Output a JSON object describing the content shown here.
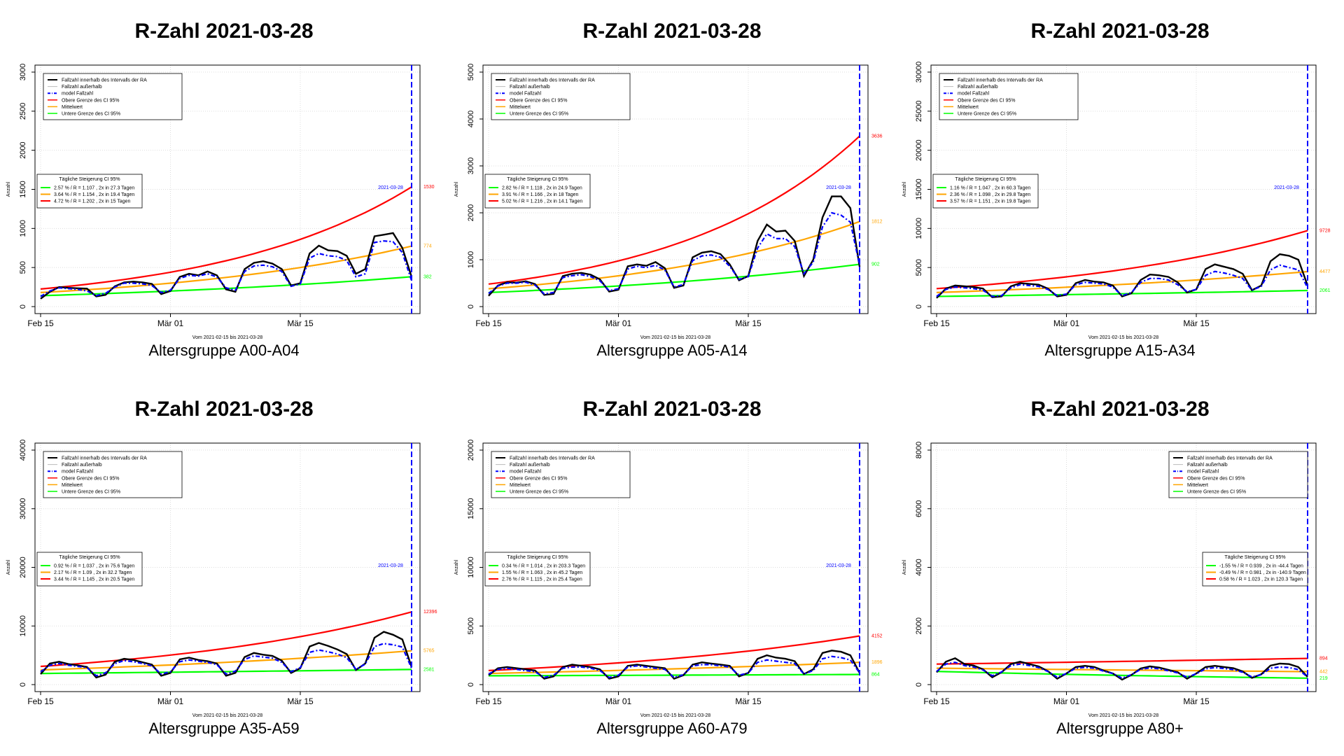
{
  "chart_data": [
    {
      "type": "line",
      "title": "R-Zahl 2021-03-28",
      "subtitle": "Altersgruppe A00-A04",
      "ylabel": "Anzahl",
      "xlabel_note": "Vom 2021-02-15 bis 2021-03-28",
      "x_ticks": [
        "Feb 15",
        "Mär 01",
        "Mär 15"
      ],
      "ylim": [
        0,
        3000
      ],
      "y_ticks": [
        0,
        500,
        1000,
        1500,
        2000,
        2500,
        3000
      ],
      "vline_label": "2021-03-28",
      "legend_position": "top-left",
      "legend": [
        "Fallzahl innerhalb des Intervalls der RA",
        "Fallzahl außerhalb",
        "model Fallzahl",
        "Obere Grenze des CI 95%",
        "Mittelwert",
        "Untere Grenze des CI 95%"
      ],
      "growth_box_position": "left",
      "growth_title": "Tägliche Steigerung CI  95%",
      "growth_lines": [
        "2.57 % / R = 1.107 , 2x in 27.3 Tagen",
        "3.64 % / R = 1.154 , 2x in 19.4 Tagen",
        "4.72 % / R = 1.202 , 2x in 15 Tagen"
      ],
      "series": [
        {
          "name": "Fallzahl innerhalb des Intervalls der RA",
          "color": "#000000",
          "values": [
            100,
            190,
            250,
            240,
            235,
            230,
            130,
            150,
            260,
            310,
            320,
            310,
            290,
            160,
            200,
            380,
            420,
            400,
            450,
            400,
            220,
            190,
            480,
            560,
            580,
            550,
            480,
            270,
            300,
            680,
            780,
            720,
            710,
            650,
            420,
            480,
            900,
            920,
            940,
            750,
            380
          ]
        },
        {
          "name": "model Fallzahl",
          "color": "#0000ff",
          "values": [
            130,
            200,
            240,
            230,
            220,
            200,
            140,
            170,
            250,
            300,
            300,
            290,
            270,
            180,
            210,
            360,
            400,
            390,
            420,
            380,
            240,
            210,
            450,
            520,
            530,
            510,
            450,
            260,
            290,
            620,
            680,
            650,
            640,
            590,
            380,
            420,
            820,
            840,
            830,
            690,
            330
          ]
        }
      ],
      "trend": [
        {
          "name": "Obere Grenze des CI 95%",
          "color": "#ff0000",
          "start": 225,
          "end": 1530,
          "label": "1530"
        },
        {
          "name": "Mittelwert",
          "color": "#ffa500",
          "start": 180,
          "end": 774,
          "label": "774"
        },
        {
          "name": "Untere Grenze des CI 95%",
          "color": "#00ff00",
          "start": 140,
          "end": 382,
          "label": "382"
        }
      ]
    },
    {
      "type": "line",
      "title": "R-Zahl 2021-03-28",
      "subtitle": "Altersgruppe A05-A14",
      "ylabel": "Anzahl",
      "xlabel_note": "Vom 2021-02-15 bis 2021-03-28",
      "x_ticks": [
        "Feb 15",
        "Mär 01",
        "Mär 15"
      ],
      "ylim": [
        0,
        5000
      ],
      "y_ticks": [
        0,
        1000,
        2000,
        3000,
        4000,
        5000
      ],
      "vline_label": "2021-03-28",
      "legend_position": "top-left",
      "legend": [
        "Fallzahl innerhalb des Intervalls der RA",
        "Fallzahl außerhalb",
        "model Fallzahl",
        "Obere Grenze des CI 95%",
        "Mittelwert",
        "Untere Grenze des CI 95%"
      ],
      "growth_box_position": "left",
      "growth_title": "Tägliche Steigerung CI  95%",
      "growth_lines": [
        "2.82 % / R = 1.118 , 2x in 24.9 Tagen",
        "3.91 % / R = 1.166 , 2x in 18 Tagen",
        "5.02 % / R = 1.216 , 2x in 14.1 Tagen"
      ],
      "series": [
        {
          "name": "Fallzahl innerhalb des Intervalls der RA",
          "color": "#000000",
          "values": [
            230,
            450,
            520,
            510,
            540,
            480,
            250,
            270,
            650,
            700,
            720,
            680,
            580,
            320,
            360,
            860,
            900,
            870,
            950,
            820,
            400,
            450,
            1050,
            1150,
            1180,
            1120,
            900,
            560,
            650,
            1400,
            1750,
            1600,
            1620,
            1400,
            650,
            1000,
            1900,
            2350,
            2350,
            2100,
            850
          ]
        },
        {
          "name": "model Fallzahl",
          "color": "#0000ff",
          "values": [
            280,
            440,
            500,
            500,
            520,
            460,
            270,
            300,
            620,
            660,
            680,
            640,
            550,
            340,
            380,
            800,
            860,
            830,
            880,
            780,
            420,
            470,
            980,
            1080,
            1100,
            1050,
            860,
            580,
            640,
            1250,
            1550,
            1450,
            1450,
            1280,
            700,
            950,
            1700,
            2000,
            1950,
            1800,
            880
          ]
        }
      ],
      "trend": [
        {
          "name": "Obere Grenze des CI 95%",
          "color": "#ff0000",
          "start": 480,
          "end": 3636,
          "label": "3636"
        },
        {
          "name": "Mittelwert",
          "color": "#ffa500",
          "start": 380,
          "end": 1812,
          "label": "1812"
        },
        {
          "name": "Untere Grenze des CI 95%",
          "color": "#00ff00",
          "start": 300,
          "end": 902,
          "label": "902"
        }
      ]
    },
    {
      "type": "line",
      "title": "R-Zahl 2021-03-28",
      "subtitle": "Altersgruppe A15-A34",
      "ylabel": "Anzahl",
      "xlabel_note": "Vom 2021-02-15 bis 2021-03-28",
      "x_ticks": [
        "Feb 15",
        "Mär 01",
        "Mär 15"
      ],
      "ylim": [
        0,
        30000
      ],
      "y_ticks": [
        0,
        5000,
        10000,
        15000,
        20000,
        25000,
        30000
      ],
      "vline_label": "2021-03-28",
      "legend_position": "top-left",
      "legend": [
        "Fallzahl innerhalb des Intervalls der RA",
        "Fallzahl außerhalb",
        "model Fallzahl",
        "Obere Grenze des CI 95%",
        "Mittelwert",
        "Untere Grenze des CI 95%"
      ],
      "growth_box_position": "left",
      "growth_title": "Tägliche Steigerung CI  95%",
      "growth_lines": [
        "1.16 % / R = 1.047 , 2x in 60.3 Tagen",
        "2.36 % / R = 1.098 , 2x in 29.8 Tagen",
        "3.57 % / R = 1.151 , 2x in 19.8 Tagen"
      ],
      "series": [
        {
          "name": "Fallzahl innerhalb des Intervalls der RA",
          "color": "#000000",
          "values": [
            1100,
            2300,
            2700,
            2600,
            2500,
            2300,
            1200,
            1300,
            2600,
            3000,
            2900,
            2800,
            2300,
            1300,
            1500,
            3000,
            3400,
            3200,
            3100,
            2700,
            1300,
            1700,
            3400,
            4100,
            4000,
            3800,
            3100,
            1800,
            2200,
            4800,
            5400,
            5100,
            4800,
            4200,
            2100,
            2700,
            5800,
            6700,
            6500,
            6000,
            2700
          ]
        },
        {
          "name": "model Fallzahl",
          "color": "#0000ff",
          "values": [
            1300,
            2200,
            2500,
            2400,
            2300,
            2100,
            1300,
            1400,
            2400,
            2800,
            2700,
            2600,
            2200,
            1400,
            1600,
            2800,
            3100,
            3000,
            2900,
            2500,
            1400,
            1800,
            3100,
            3600,
            3600,
            3400,
            2800,
            1900,
            2200,
            4000,
            4500,
            4300,
            4000,
            3600,
            2100,
            2600,
            4700,
            5300,
            5000,
            4700,
            2400
          ]
        }
      ],
      "trend": [
        {
          "name": "Obere Grenze des CI 95%",
          "color": "#ff0000",
          "start": 2300,
          "end": 9728,
          "label": "9728"
        },
        {
          "name": "Mittelwert",
          "color": "#ffa500",
          "start": 1800,
          "end": 4477,
          "label": "4477"
        },
        {
          "name": "Untere Grenze des CI 95%",
          "color": "#00ff00",
          "start": 1300,
          "end": 2061,
          "label": "2061"
        }
      ]
    },
    {
      "type": "line",
      "title": "R-Zahl 2021-03-28",
      "subtitle": "Altersgruppe A35-A59",
      "ylabel": "Anzahl",
      "xlabel_note": "Vom 2021-02-15 bis 2021-03-28",
      "x_ticks": [
        "Feb 15",
        "Mär 01",
        "Mär 15"
      ],
      "ylim": [
        0,
        40000
      ],
      "y_ticks": [
        0,
        10000,
        20000,
        30000,
        40000
      ],
      "vline_label": "2021-03-28",
      "legend_position": "top-left",
      "legend": [
        "Fallzahl innerhalb des Intervalls der RA",
        "Fallzahl außerhalb",
        "model Fallzahl",
        "Obere Grenze des CI 95%",
        "Mittelwert",
        "Untere Grenze des CI 95%"
      ],
      "growth_box_position": "left",
      "growth_title": "Tägliche Steigerung CI  95%",
      "growth_lines": [
        "0.92 % / R = 1.037 , 2x in 75.6 Tagen",
        "2.17 % / R = 1.09 , 2x in 32.2 Tagen",
        "3.44 % / R = 1.145 , 2x in 20.5 Tagen"
      ],
      "series": [
        {
          "name": "Fallzahl innerhalb des Intervalls der RA",
          "color": "#000000",
          "values": [
            1800,
            3600,
            3900,
            3500,
            3300,
            3000,
            1200,
            1700,
            3900,
            4400,
            4200,
            3800,
            3400,
            1500,
            2000,
            4300,
            4600,
            4200,
            4000,
            3600,
            1500,
            2000,
            4700,
            5400,
            5100,
            4900,
            4100,
            2000,
            2800,
            6500,
            7100,
            6600,
            6000,
            5200,
            2500,
            3600,
            8000,
            9000,
            8500,
            7700,
            3000
          ]
        },
        {
          "name": "model Fallzahl",
          "color": "#0000ff",
          "values": [
            2200,
            3300,
            3600,
            3300,
            3100,
            2900,
            1500,
            2000,
            3600,
            4100,
            3900,
            3600,
            3200,
            1800,
            2200,
            3900,
            4200,
            4000,
            3800,
            3400,
            1800,
            2300,
            4300,
            4900,
            4700,
            4500,
            3800,
            2200,
            2900,
            5500,
            5900,
            5600,
            5200,
            4600,
            2600,
            3500,
            6500,
            7000,
            6800,
            6400,
            2800
          ]
        }
      ],
      "trend": [
        {
          "name": "Obere Grenze des CI 95%",
          "color": "#ff0000",
          "start": 3100,
          "end": 12396,
          "label": "12396"
        },
        {
          "name": "Mittelwert",
          "color": "#ffa500",
          "start": 2500,
          "end": 5765,
          "label": "5765"
        },
        {
          "name": "Untere Grenze des CI 95%",
          "color": "#00ff00",
          "start": 1900,
          "end": 2581,
          "label": "2581"
        }
      ]
    },
    {
      "type": "line",
      "title": "R-Zahl 2021-03-28",
      "subtitle": "Altersgruppe A60-A79",
      "ylabel": "Anzahl",
      "xlabel_note": "Vom 2021-02-15 bis 2021-03-28",
      "x_ticks": [
        "Feb 15",
        "Mär 01",
        "Mär 15"
      ],
      "ylim": [
        0,
        20000
      ],
      "y_ticks": [
        0,
        5000,
        10000,
        15000,
        20000
      ],
      "vline_label": "2021-03-28",
      "legend_position": "top-left",
      "legend": [
        "Fallzahl innerhalb des Intervalls der RA",
        "Fallzahl außerhalb",
        "model Fallzahl",
        "Obere Grenze des CI 95%",
        "Mittelwert",
        "Untere Grenze des CI 95%"
      ],
      "growth_box_position": "left",
      "growth_title": "Tägliche Steigerung CI  95%",
      "growth_lines": [
        "0.34 % / R = 1.014 , 2x in 203.3 Tagen",
        "1.55 % / R = 1.063 , 2x in 45.2 Tagen",
        "2.76 % / R = 1.115 , 2x in 25.4 Tagen"
      ],
      "series": [
        {
          "name": "Fallzahl innerhalb des Intervalls der RA",
          "color": "#000000",
          "values": [
            800,
            1400,
            1500,
            1400,
            1300,
            1200,
            500,
            700,
            1500,
            1700,
            1600,
            1500,
            1300,
            500,
            700,
            1600,
            1700,
            1600,
            1500,
            1400,
            500,
            800,
            1700,
            1900,
            1800,
            1700,
            1600,
            700,
            1000,
            2200,
            2500,
            2300,
            2200,
            2000,
            900,
            1300,
            2700,
            2900,
            2800,
            2500,
            1000
          ]
        },
        {
          "name": "model Fallzahl",
          "color": "#0000ff",
          "values": [
            900,
            1300,
            1400,
            1300,
            1200,
            1100,
            600,
            800,
            1400,
            1500,
            1500,
            1400,
            1200,
            600,
            800,
            1500,
            1600,
            1500,
            1400,
            1300,
            600,
            850,
            1600,
            1700,
            1700,
            1600,
            1500,
            800,
            1000,
            1900,
            2100,
            2000,
            1900,
            1800,
            900,
            1200,
            2200,
            2400,
            2300,
            2100,
            1000
          ]
        }
      ],
      "trend": [
        {
          "name": "Obere Grenze des CI 95%",
          "color": "#ff0000",
          "start": 1200,
          "end": 4152,
          "label": "4152"
        },
        {
          "name": "Mittelwert",
          "color": "#ffa500",
          "start": 950,
          "end": 1896,
          "label": "1896"
        },
        {
          "name": "Untere Grenze des CI 95%",
          "color": "#00ff00",
          "start": 750,
          "end": 864,
          "label": "864"
        }
      ]
    },
    {
      "type": "line",
      "title": "R-Zahl 2021-03-28",
      "subtitle": "Altersgruppe A80+",
      "ylabel": "Anzahl",
      "xlabel_note": "Vom 2021-02-15 bis 2021-03-28",
      "x_ticks": [
        "Feb 15",
        "Mär 01",
        "Mär 15"
      ],
      "ylim": [
        0,
        8000
      ],
      "y_ticks": [
        0,
        2000,
        4000,
        6000,
        8000
      ],
      "vline_label": "2021-03-28",
      "legend_position": "top-right",
      "legend": [
        "Fallzahl innerhalb des Intervalls der RA",
        "Fallzahl außerhalb",
        "model Fallzahl",
        "Obere Grenze des CI 95%",
        "Mittelwert",
        "Untere Grenze des CI 95%"
      ],
      "growth_box_position": "right",
      "growth_title": "Tägliche Steigerung CI  95%",
      "growth_lines": [
        "-1.55 % / R = 0.939 , 2x in -44.4 Tagen",
        "-0.49 % / R = 0.981 , 2x in -140.9 Tagen",
        "0.58 % / R = 1.023 , 2x in 120.3 Tagen"
      ],
      "series": [
        {
          "name": "Fallzahl innerhalb des Intervalls der RA",
          "color": "#000000",
          "values": [
            420,
            780,
            900,
            700,
            650,
            520,
            250,
            420,
            700,
            780,
            700,
            620,
            460,
            200,
            380,
            600,
            640,
            600,
            480,
            380,
            170,
            330,
            550,
            620,
            580,
            500,
            420,
            200,
            380,
            600,
            640,
            600,
            560,
            450,
            230,
            350,
            650,
            720,
            700,
            600,
            260
          ]
        },
        {
          "name": "model Fallzahl",
          "color": "#0000ff",
          "values": [
            450,
            700,
            760,
            650,
            600,
            500,
            300,
            430,
            650,
            700,
            650,
            580,
            450,
            250,
            380,
            560,
            590,
            560,
            460,
            380,
            220,
            340,
            520,
            570,
            540,
            470,
            400,
            250,
            370,
            540,
            580,
            550,
            510,
            420,
            260,
            340,
            560,
            600,
            580,
            510,
            260
          ]
        }
      ],
      "trend": [
        {
          "name": "Obere Grenze des CI 95%",
          "color": "#ff0000",
          "start": 700,
          "end": 894,
          "label": "894"
        },
        {
          "name": "Mittelwert",
          "color": "#ffa500",
          "start": 560,
          "end": 442,
          "label": "442"
        },
        {
          "name": "Untere Grenze des CI 95%",
          "color": "#00ff00",
          "start": 450,
          "end": 219,
          "label": "219"
        }
      ]
    }
  ]
}
